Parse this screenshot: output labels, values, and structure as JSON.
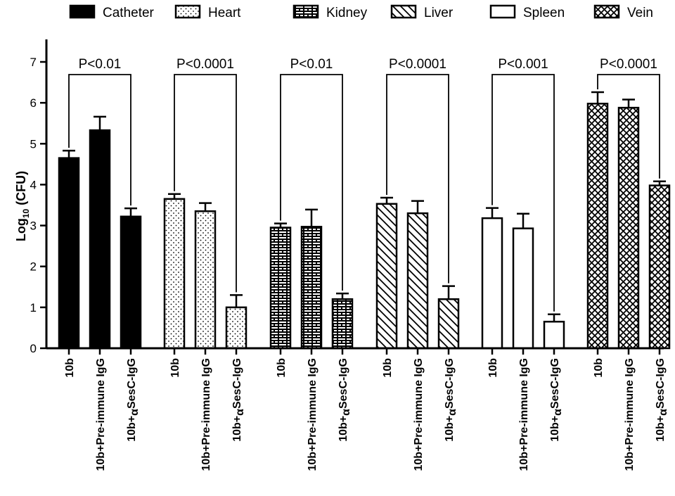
{
  "chart_data": {
    "type": "bar",
    "ylabel": "Log10 (CFU)",
    "ylabel_main": "Log",
    "ylabel_sub": "10",
    "ylabel_rest": " (CFU)",
    "ylim": [
      0,
      7
    ],
    "yticks": [
      0,
      1,
      2,
      3,
      4,
      5,
      6,
      7
    ],
    "legend_position": "top",
    "categories": [
      "10b",
      "10b+Pre-immune IgG",
      "10b+αSesC-IgG"
    ],
    "category_label_parts": [
      {
        "text": "10b",
        "alpha": "",
        "rest": ""
      },
      {
        "text": "10b+Pre-immune IgG",
        "alpha": "",
        "rest": ""
      },
      {
        "text": "10b+",
        "alpha": "α",
        "rest": "SesC-IgG"
      }
    ],
    "groups": [
      {
        "name": "Catheter",
        "pattern": "solid",
        "values": [
          4.65,
          5.33,
          3.22
        ],
        "errors": [
          0.18,
          0.33,
          0.2
        ],
        "pvalue": "P<0.01"
      },
      {
        "name": "Heart",
        "pattern": "dots",
        "values": [
          3.65,
          3.35,
          1.0
        ],
        "errors": [
          0.12,
          0.2,
          0.3
        ],
        "pvalue": "P<0.0001"
      },
      {
        "name": "Kidney",
        "pattern": "brick",
        "values": [
          2.95,
          2.97,
          1.2
        ],
        "errors": [
          0.1,
          0.42,
          0.14
        ],
        "pvalue": "P<0.01"
      },
      {
        "name": "Liver",
        "pattern": "diagonal",
        "values": [
          3.53,
          3.3,
          1.2
        ],
        "errors": [
          0.15,
          0.3,
          0.32
        ],
        "pvalue": "P<0.0001"
      },
      {
        "name": "Spleen",
        "pattern": "white",
        "values": [
          3.18,
          2.93,
          0.65
        ],
        "errors": [
          0.25,
          0.36,
          0.18
        ],
        "pvalue": "P<0.001"
      },
      {
        "name": "Vein",
        "pattern": "cross",
        "values": [
          5.98,
          5.88,
          3.98
        ],
        "errors": [
          0.28,
          0.2,
          0.1
        ],
        "pvalue": "P<0.0001"
      }
    ]
  }
}
